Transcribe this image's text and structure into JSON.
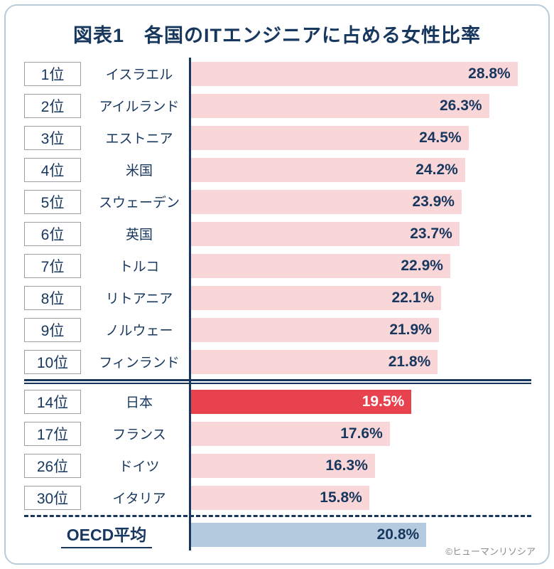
{
  "title": "図表1　各国のITエンジニアに占める女性比率",
  "footer": {
    "credit": "©ヒューマンリソシア"
  },
  "colors": {
    "navy": "#17375e",
    "frame_border": "#b7cbd9",
    "bar_pink": "#f9d7d9",
    "bar_red": "#e8424e",
    "bar_blue": "#b4cadf",
    "rank_box_border": "#9aa0a6",
    "credit_grey": "#8c8c8c",
    "highlight_text": "#ffffff"
  },
  "chart_data": {
    "type": "bar",
    "orientation": "horizontal",
    "value_unit": "%",
    "axis_max": 30,
    "title": "図表1　各国のITエンジニアに占める女性比率",
    "legend": "none",
    "grid": "off",
    "rows": [
      {
        "rank": "1位",
        "country": "イスラエル",
        "value": 28.8,
        "label": "28.8%",
        "kind": "normal"
      },
      {
        "rank": "2位",
        "country": "アイルランド",
        "value": 26.3,
        "label": "26.3%",
        "kind": "normal"
      },
      {
        "rank": "3位",
        "country": "エストニア",
        "value": 24.5,
        "label": "24.5%",
        "kind": "normal"
      },
      {
        "rank": "4位",
        "country": "米国",
        "value": 24.2,
        "label": "24.2%",
        "kind": "normal"
      },
      {
        "rank": "5位",
        "country": "スウェーデン",
        "value": 23.9,
        "label": "23.9%",
        "kind": "normal"
      },
      {
        "rank": "6位",
        "country": "英国",
        "value": 23.7,
        "label": "23.7%",
        "kind": "normal"
      },
      {
        "rank": "7位",
        "country": "トルコ",
        "value": 22.9,
        "label": "22.9%",
        "kind": "normal"
      },
      {
        "rank": "8位",
        "country": "リトアニア",
        "value": 22.1,
        "label": "22.1%",
        "kind": "normal"
      },
      {
        "rank": "9位",
        "country": "ノルウェー",
        "value": 21.9,
        "label": "21.9%",
        "kind": "normal"
      },
      {
        "rank": "10位",
        "country": "フィンランド",
        "value": 21.8,
        "label": "21.8%",
        "kind": "normal",
        "separator_after": "double"
      },
      {
        "rank": "14位",
        "country": "日本",
        "value": 19.5,
        "label": "19.5%",
        "kind": "highlight"
      },
      {
        "rank": "17位",
        "country": "フランス",
        "value": 17.6,
        "label": "17.6%",
        "kind": "normal"
      },
      {
        "rank": "26位",
        "country": "ドイツ",
        "value": 16.3,
        "label": "16.3%",
        "kind": "normal"
      },
      {
        "rank": "30位",
        "country": "イタリア",
        "value": 15.8,
        "label": "15.8%",
        "kind": "normal",
        "separator_after": "dashed"
      },
      {
        "rank": "",
        "country": "OECD平均",
        "value": 20.8,
        "label": "20.8%",
        "kind": "average"
      }
    ]
  }
}
